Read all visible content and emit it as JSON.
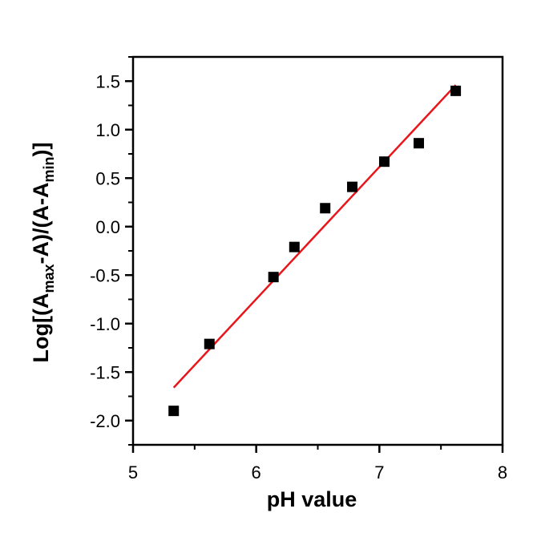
{
  "chart_data": {
    "type": "scatter",
    "xlabel": "pH value",
    "ylabel": {
      "prefix": "Log[(A",
      "sub1": "max",
      "middle": "-A)/(A-A",
      "sub2": "min",
      "suffix": ")]"
    },
    "xlim": [
      5,
      8
    ],
    "ylim": [
      -2.25,
      1.75
    ],
    "xticks": [
      5,
      6,
      7,
      8
    ],
    "xtick_labels": [
      "5",
      "6",
      "7",
      "8"
    ],
    "yticks": [
      1.5,
      1.0,
      0.5,
      0.0,
      -0.5,
      -1.0,
      -1.5,
      -2.0
    ],
    "ytick_labels": [
      "1.5",
      "1.0",
      "0.5",
      "0.0",
      "-0.5",
      "-1.0",
      "-1.5",
      "-2.0"
    ],
    "grid": false,
    "series": [
      {
        "type": "scatter",
        "marker": "square",
        "color": "#000000",
        "x": [
          5.33,
          5.62,
          6.14,
          6.31,
          6.56,
          6.78,
          7.04,
          7.32,
          7.62
        ],
        "y": [
          -1.9,
          -1.21,
          -0.52,
          -0.21,
          0.19,
          0.41,
          0.67,
          0.86,
          1.4
        ]
      },
      {
        "type": "line",
        "color": "#e8161b",
        "x": [
          5.33,
          7.62
        ],
        "y": [
          -1.66,
          1.46
        ]
      }
    ]
  }
}
